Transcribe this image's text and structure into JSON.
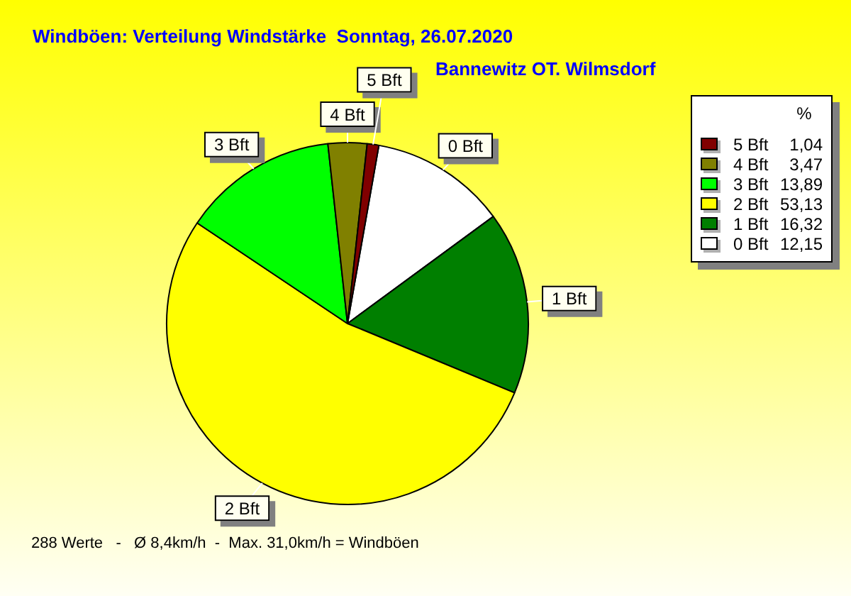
{
  "chart_data": {
    "type": "pie",
    "title": "Windböen: Verteilung Windstärke  Sonntag, 26.07.2020",
    "subtitle": "Bannewitz OT. Wilmsdorf",
    "legend_title": "%",
    "categories": [
      "0 Bft",
      "1 Bft",
      "2 Bft",
      "3 Bft",
      "4 Bft",
      "5 Bft"
    ],
    "values": [
      12.15,
      16.32,
      53.13,
      13.89,
      3.47,
      1.04
    ],
    "value_labels": [
      "12,15",
      "16,32",
      "53,13",
      "13,89",
      "3,47",
      "1,04"
    ],
    "colors": [
      "#ffffff",
      "#007f00",
      "#ffff00",
      "#00ff00",
      "#808000",
      "#800000"
    ],
    "legend": "top right",
    "annotations": [
      "288 Werte   -   Ø 8,4km/h  -  Max. 31,0km/h = Windböen"
    ]
  }
}
